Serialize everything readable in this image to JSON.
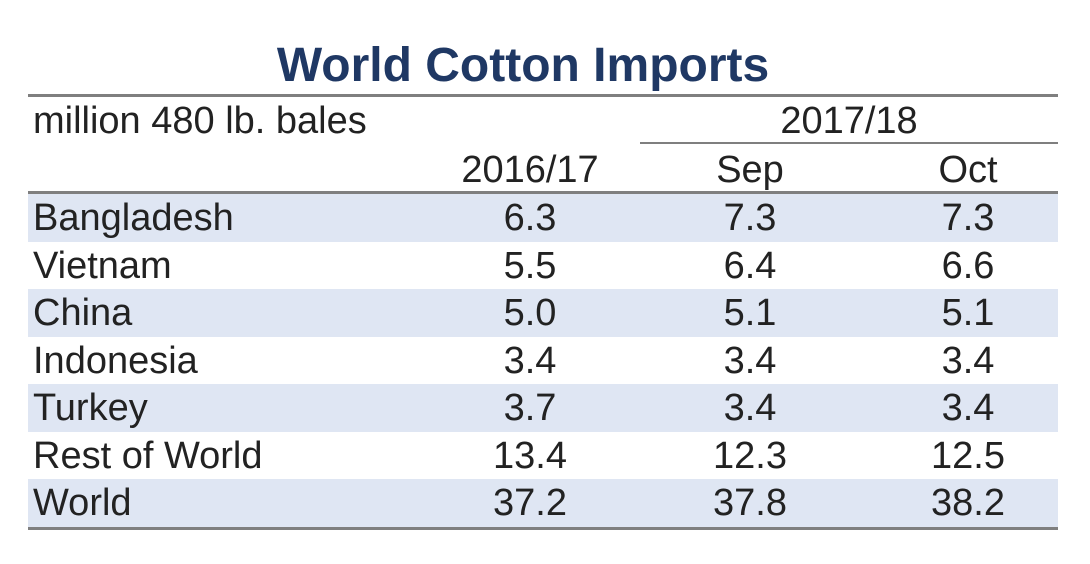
{
  "chart_data": {
    "type": "table",
    "title": "World Cotton Imports",
    "unit_label": "million 480 lb. bales",
    "group_header": "2017/18",
    "columns": [
      "2016/17",
      "Sep",
      "Oct"
    ],
    "rows": [
      {
        "label": "Bangladesh",
        "values": [
          "6.3",
          "7.3",
          "7.3"
        ]
      },
      {
        "label": "Vietnam",
        "values": [
          "5.5",
          "6.4",
          "6.6"
        ]
      },
      {
        "label": "China",
        "values": [
          "5.0",
          "5.1",
          "5.1"
        ]
      },
      {
        "label": "Indonesia",
        "values": [
          "3.4",
          "3.4",
          "3.4"
        ]
      },
      {
        "label": "Turkey",
        "values": [
          "3.7",
          "3.4",
          "3.4"
        ]
      },
      {
        "label": "Rest of World",
        "values": [
          "13.4",
          "12.3",
          "12.5"
        ]
      },
      {
        "label": "World",
        "values": [
          "37.2",
          "37.8",
          "38.2"
        ]
      }
    ]
  },
  "colors": {
    "title": "#1f3864",
    "band": "#dfe6f3",
    "rule": "#7f7f7f"
  }
}
